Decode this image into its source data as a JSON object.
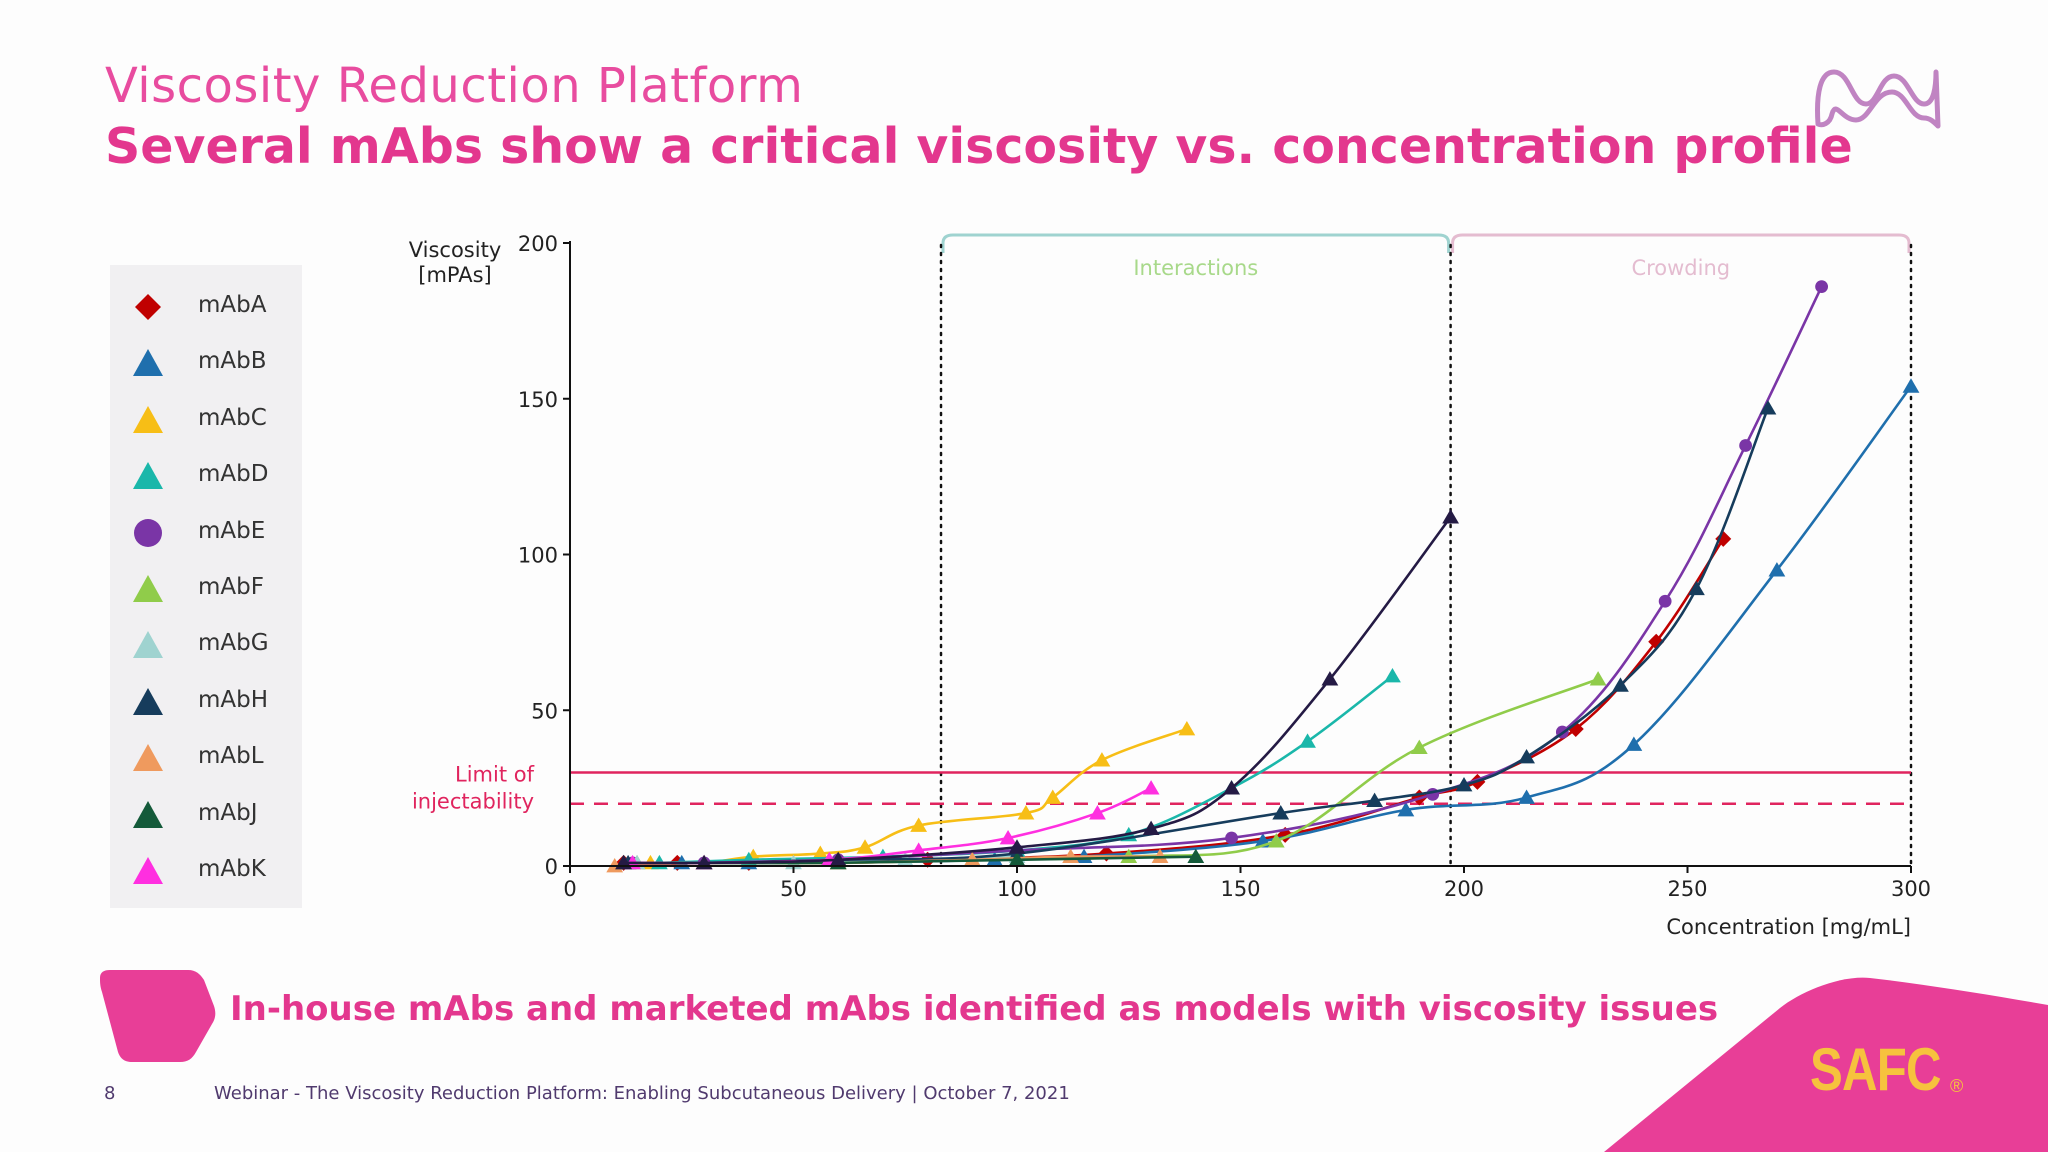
{
  "header": {
    "title": "Viscosity Reduction Platform",
    "subtitle": "Several mAbs show a critical viscosity vs. concentration profile"
  },
  "brand": {
    "accent": "#e3378e",
    "logo_color": "#c084c2",
    "safc_label": "SAFC",
    "safc_reg": "®",
    "safc_color": "#f6c23e"
  },
  "callout": "In-house mAbs and marketed mAbs identified as models with viscosity issues",
  "footer": {
    "page_number": "8",
    "text": "Webinar - The Viscosity Reduction Platform: Enabling Subcutaneous Delivery | October 7, 2021"
  },
  "chart_data": {
    "type": "line",
    "ylabel_line1": "Viscosity",
    "ylabel_line2": "[mPAs]",
    "xlabel": "Concentration [mg/mL]",
    "xlim": [
      0,
      300
    ],
    "ylim": [
      0,
      200
    ],
    "x_ticks": [
      "0",
      "50",
      "100",
      "150",
      "200",
      "250",
      "300"
    ],
    "y_ticks": [
      "0",
      "50",
      "100",
      "150",
      "200"
    ],
    "grid": false,
    "legend_position": "left",
    "regions": [
      {
        "label": "Interactions",
        "x_start": 83,
        "x_end": 197,
        "color": "#a8d98a",
        "bracket_color": "#9fd3d0"
      },
      {
        "label": "Crowding",
        "x_start": 197,
        "x_end": 300,
        "color": "#e4bcd0",
        "bracket_color": "#e4bcd0"
      }
    ],
    "limit_label_line1": "Limit of",
    "limit_label_line2": "injectability",
    "limit_value": 30,
    "limit_dashed_value": 20,
    "limit_color": "#e0245e",
    "series": [
      {
        "name": "mAbA",
        "color": "#c00000",
        "marker": "diamond",
        "x": [
          12,
          24,
          40,
          80,
          120,
          160,
          190,
          203,
          225,
          243,
          258
        ],
        "y": [
          1,
          1,
          1,
          2,
          4,
          10,
          22,
          27,
          44,
          72,
          105
        ]
      },
      {
        "name": "mAbB",
        "color": "#1f6fad",
        "marker": "triangle",
        "x": [
          12,
          25,
          40,
          60,
          95,
          115,
          155,
          187,
          214,
          238,
          270,
          300
        ],
        "y": [
          1,
          1,
          1,
          1,
          2,
          3,
          8,
          18,
          22,
          39,
          95,
          154
        ]
      },
      {
        "name": "mAbC",
        "color": "#f7be16",
        "marker": "triangle",
        "x": [
          18,
          30,
          41,
          56,
          66,
          78,
          102,
          108,
          119,
          138
        ],
        "y": [
          1,
          1,
          3,
          4,
          6,
          13,
          17,
          22,
          34,
          44
        ]
      },
      {
        "name": "mAbD",
        "color": "#1ab7aa",
        "marker": "triangle",
        "x": [
          20,
          40,
          70,
          100,
          125,
          148,
          165,
          184
        ],
        "y": [
          1,
          2,
          3,
          5,
          10,
          25,
          40,
          61
        ]
      },
      {
        "name": "mAbE",
        "color": "#7a35a6",
        "marker": "circle",
        "x": [
          14,
          30,
          60,
          100,
          148,
          193,
          222,
          245,
          263,
          280
        ],
        "y": [
          1,
          1,
          2,
          5,
          9,
          23,
          43,
          85,
          135,
          186
        ]
      },
      {
        "name": "mAbF",
        "color": "#90cc4a",
        "marker": "triangle",
        "x": [
          15,
          30,
          60,
          90,
          125,
          158,
          190,
          230
        ],
        "y": [
          1,
          1,
          1,
          2,
          3,
          8,
          38,
          60
        ]
      },
      {
        "name": "mAbG",
        "color": "#9fd3d0",
        "marker": "triangle",
        "x": [
          15,
          30,
          50,
          75,
          100
        ],
        "y": [
          1,
          1,
          1,
          2,
          3
        ]
      },
      {
        "name": "mAbH",
        "color": "#163c5c",
        "marker": "triangle",
        "x": [
          13,
          30,
          60,
          100,
          159,
          180,
          200,
          214,
          235,
          252,
          268
        ],
        "y": [
          1,
          1,
          2,
          4,
          17,
          21,
          26,
          35,
          58,
          89,
          147
        ]
      },
      {
        "name": "mAbL",
        "color": "#ef9a5e",
        "marker": "triangle",
        "x": [
          10,
          30,
          60,
          90,
          112,
          132
        ],
        "y": [
          0,
          1,
          1,
          2,
          3,
          3
        ]
      },
      {
        "name": "mAbJ",
        "color": "#145a3a",
        "marker": "triangle",
        "x": [
          12,
          30,
          60,
          100,
          140
        ],
        "y": [
          1,
          1,
          1,
          2,
          3
        ]
      },
      {
        "name": "mAbK",
        "color": "#ff2fe0",
        "marker": "triangle",
        "x": [
          14,
          30,
          58,
          78,
          98,
          118,
          130
        ],
        "y": [
          1,
          1,
          2,
          5,
          9,
          17,
          25
        ]
      },
      {
        "name": "",
        "color": "#241a44",
        "marker": "triangle",
        "x": [
          12,
          30,
          60,
          100,
          130,
          148,
          170,
          197
        ],
        "y": [
          1,
          1,
          2,
          6,
          12,
          25,
          60,
          112
        ]
      }
    ]
  }
}
